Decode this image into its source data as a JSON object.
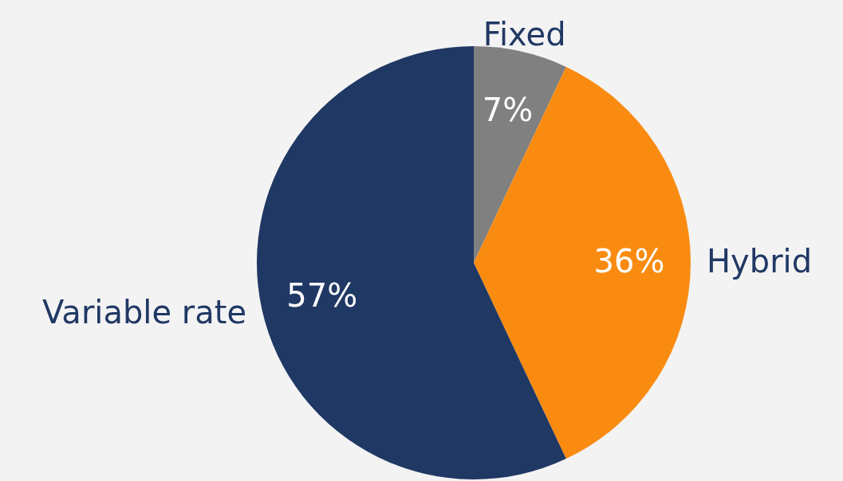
{
  "chart_data": {
    "type": "pie",
    "categories": [
      "Fixed",
      "Hybrid",
      "Variable rate"
    ],
    "values": [
      7,
      36,
      57
    ],
    "colors": [
      "#808080",
      "#f98b11",
      "#203864"
    ],
    "value_labels": [
      "7%",
      "36%",
      "57%"
    ]
  }
}
